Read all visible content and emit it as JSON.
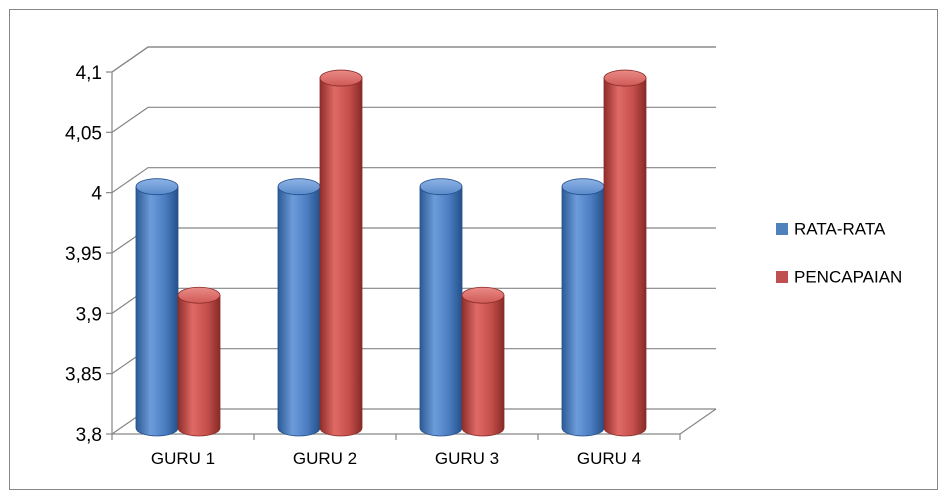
{
  "chart_data": {
    "type": "bar",
    "categories": [
      "GURU 1",
      "GURU 2",
      "GURU 3",
      "GURU 4"
    ],
    "series": [
      {
        "name": "RATA-RATA",
        "values": [
          4.0,
          4.0,
          4.0,
          4.0
        ],
        "color": "#4F81BD"
      },
      {
        "name": "PENCAPAIAN",
        "values": [
          3.91,
          4.09,
          3.91,
          4.09
        ],
        "color": "#C0504D"
      }
    ],
    "ylim": [
      3.8,
      4.1
    ],
    "yticks": [
      "3,8",
      "3,85",
      "3,9",
      "3,95",
      "4",
      "4,05",
      "4,1"
    ],
    "grid": true,
    "legend_position": "right",
    "style": "3d-cylinder"
  }
}
